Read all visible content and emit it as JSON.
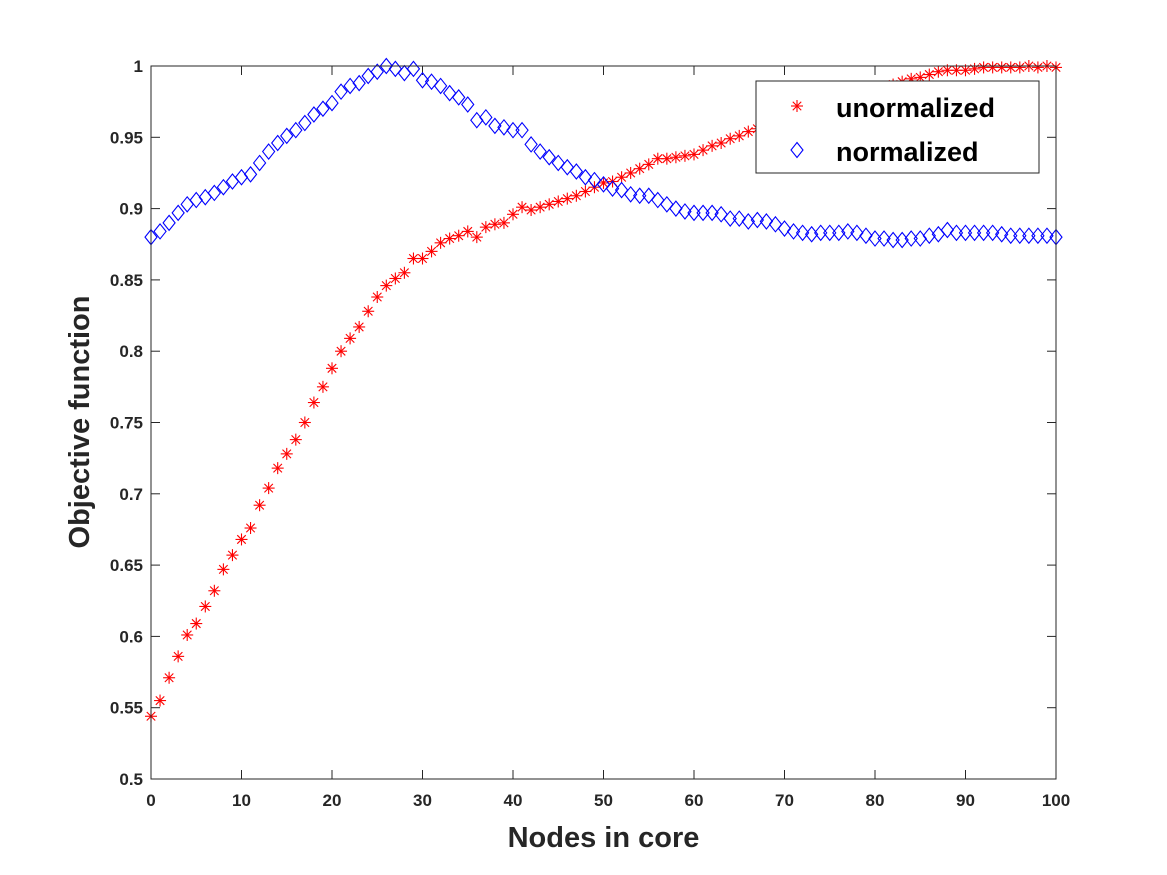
{
  "chart_data": {
    "type": "scatter",
    "title": "",
    "xlabel": "Nodes in  core",
    "ylabel": "Objective function",
    "xlim": [
      0,
      100
    ],
    "ylim": [
      0.5,
      1
    ],
    "xticks": [
      0,
      10,
      20,
      30,
      40,
      50,
      60,
      70,
      80,
      90,
      100
    ],
    "xtick_labels": [
      "0",
      "10",
      "20",
      "30",
      "40",
      "50",
      "60",
      "70",
      "80",
      "90",
      "100"
    ],
    "yticks": [
      0.5,
      0.55,
      0.6,
      0.65,
      0.7,
      0.75,
      0.8,
      0.85,
      0.9,
      0.95,
      1
    ],
    "ytick_labels": [
      "0.5",
      "0.55",
      "0.6",
      "0.65",
      "0.7",
      "0.75",
      "0.8",
      "0.85",
      "0.9",
      "0.95",
      "1"
    ],
    "grid": false,
    "legend_position": "top-right",
    "x": [
      0,
      1,
      2,
      3,
      4,
      5,
      6,
      7,
      8,
      9,
      10,
      11,
      12,
      13,
      14,
      15,
      16,
      17,
      18,
      19,
      20,
      21,
      22,
      23,
      24,
      25,
      26,
      27,
      28,
      29,
      30,
      31,
      32,
      33,
      34,
      35,
      36,
      37,
      38,
      39,
      40,
      41,
      42,
      43,
      44,
      45,
      46,
      47,
      48,
      49,
      50,
      51,
      52,
      53,
      54,
      55,
      56,
      57,
      58,
      59,
      60,
      61,
      62,
      63,
      64,
      65,
      66,
      67,
      68,
      69,
      70,
      71,
      72,
      73,
      74,
      75,
      76,
      77,
      78,
      79,
      80,
      81,
      82,
      83,
      84,
      85,
      86,
      87,
      88,
      89,
      90,
      91,
      92,
      93,
      94,
      95,
      96,
      97,
      98,
      99,
      100
    ],
    "series": [
      {
        "name": "unormalized",
        "marker": "asterisk",
        "color": "#ff0000",
        "values": [
          0.544,
          0.555,
          0.571,
          0.586,
          0.601,
          0.609,
          0.621,
          0.632,
          0.647,
          0.657,
          0.668,
          0.676,
          0.692,
          0.704,
          0.718,
          0.728,
          0.738,
          0.75,
          0.764,
          0.775,
          0.788,
          0.8,
          0.809,
          0.817,
          0.828,
          0.838,
          0.846,
          0.851,
          0.855,
          0.865,
          0.865,
          0.87,
          0.876,
          0.879,
          0.881,
          0.884,
          0.88,
          0.887,
          0.889,
          0.89,
          0.896,
          0.901,
          0.899,
          0.901,
          0.903,
          0.905,
          0.907,
          0.909,
          0.912,
          0.915,
          0.918,
          0.919,
          0.922,
          0.925,
          0.928,
          0.931,
          0.935,
          0.935,
          0.936,
          0.937,
          0.938,
          0.941,
          0.944,
          0.946,
          0.949,
          0.951,
          0.954,
          0.956,
          0.958,
          0.961,
          0.963,
          0.965,
          0.967,
          0.969,
          0.971,
          0.973,
          0.975,
          0.977,
          0.979,
          0.981,
          0.983,
          0.985,
          0.987,
          0.989,
          0.991,
          0.992,
          0.994,
          0.996,
          0.997,
          0.997,
          0.997,
          0.998,
          0.999,
          0.999,
          0.999,
          0.999,
          0.999,
          1.0,
          0.999,
          1.0,
          0.999
        ]
      },
      {
        "name": "normalized",
        "marker": "diamond",
        "color": "#0000ff",
        "values": [
          0.88,
          0.884,
          0.89,
          0.897,
          0.903,
          0.906,
          0.908,
          0.911,
          0.915,
          0.919,
          0.922,
          0.924,
          0.932,
          0.94,
          0.946,
          0.951,
          0.955,
          0.96,
          0.966,
          0.97,
          0.974,
          0.982,
          0.986,
          0.988,
          0.993,
          0.996,
          1.0,
          0.998,
          0.995,
          0.998,
          0.99,
          0.989,
          0.986,
          0.981,
          0.978,
          0.973,
          0.962,
          0.964,
          0.958,
          0.957,
          0.955,
          0.955,
          0.945,
          0.94,
          0.936,
          0.932,
          0.929,
          0.926,
          0.922,
          0.92,
          0.917,
          0.914,
          0.913,
          0.91,
          0.909,
          0.909,
          0.906,
          0.903,
          0.9,
          0.898,
          0.897,
          0.897,
          0.897,
          0.896,
          0.893,
          0.893,
          0.891,
          0.892,
          0.891,
          0.889,
          0.886,
          0.884,
          0.883,
          0.882,
          0.883,
          0.883,
          0.883,
          0.884,
          0.883,
          0.881,
          0.879,
          0.879,
          0.878,
          0.878,
          0.879,
          0.879,
          0.881,
          0.882,
          0.885,
          0.883,
          0.883,
          0.883,
          0.883,
          0.883,
          0.882,
          0.881,
          0.881,
          0.881,
          0.881,
          0.881,
          0.88
        ]
      }
    ]
  }
}
